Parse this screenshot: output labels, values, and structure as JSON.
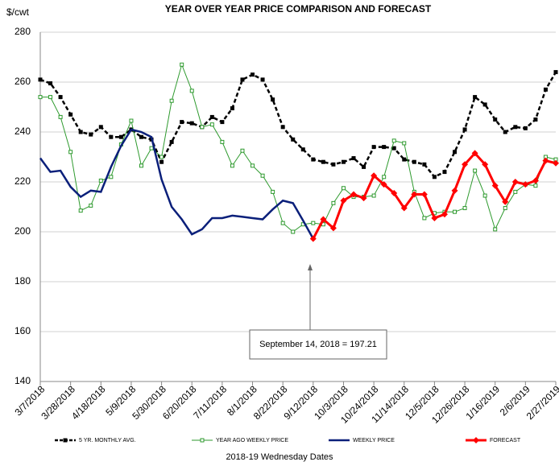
{
  "chart_data": {
    "type": "line",
    "title": "YEAR OVER YEAR PRICE COMPARISON AND FORECAST",
    "y_label": "$/cwt",
    "x_label": "2018-19 Wednesday Dates",
    "annotation": "September 14, 2018  = 197.21",
    "categories": [
      "3/7/2018",
      null,
      null,
      "3/28/2018",
      null,
      null,
      "4/18/2018",
      null,
      null,
      "5/9/2018",
      null,
      null,
      "5/30/2018",
      null,
      null,
      "6/20/2018",
      null,
      null,
      "7/11/2018",
      null,
      null,
      "8/1/2018",
      null,
      null,
      "8/22/2018",
      null,
      null,
      "9/12/2018",
      null,
      null,
      "10/3/2018",
      null,
      null,
      "10/24/2018",
      null,
      null,
      "11/14/2018",
      null,
      null,
      "12/5/2018",
      null,
      null,
      "12/26/2018",
      null,
      null,
      "1/16/2019",
      null,
      null,
      "2/6/2019",
      null,
      null,
      "2/27/2019"
    ],
    "ylim": [
      140,
      280
    ],
    "yticks": [
      140,
      160,
      180,
      200,
      220,
      240,
      260,
      280
    ],
    "grid": true,
    "series": [
      {
        "name": "5 YR. MONTHLY AVG.",
        "color": "#000000",
        "dash": true,
        "marker": "square-filled",
        "width": 2.5,
        "values": [
          261,
          259.5,
          254,
          247,
          240,
          239,
          242,
          238,
          238,
          241,
          238,
          237,
          228,
          236,
          244,
          243.5,
          242,
          246,
          244,
          249.5,
          261,
          263,
          261,
          253,
          242,
          237,
          233,
          229,
          228,
          227,
          228,
          229.5,
          226,
          234,
          234,
          233.5,
          229,
          228,
          227,
          222,
          224,
          232,
          241,
          254,
          251,
          245,
          240,
          242,
          241.5,
          245,
          257,
          264
        ]
      },
      {
        "name": "YEAR AGO WEEKLY PRICE",
        "color": "#2e9a2e",
        "dash": false,
        "marker": "square-open",
        "width": 1,
        "values": [
          254,
          254,
          246,
          232,
          208.5,
          210.5,
          220.5,
          222,
          235,
          244.5,
          226.5,
          233.5,
          230,
          252.5,
          267,
          256.5,
          242,
          243,
          236,
          226.5,
          232.5,
          226.5,
          222.5,
          216,
          203.5,
          200,
          203,
          203.5,
          203,
          211.5,
          217.5,
          214,
          214,
          214.5,
          222,
          236.5,
          235.5,
          216,
          205.5,
          207.5,
          208,
          208,
          209.5,
          224.5,
          214.5,
          201,
          209.5,
          216,
          219,
          218.5,
          230,
          229
        ]
      },
      {
        "name": "WEEKLY PRICE",
        "color": "#0a1f7a",
        "dash": false,
        "marker": "none",
        "width": 2.5,
        "values": [
          229.5,
          224,
          224.5,
          218,
          214,
          216.5,
          216,
          226,
          234.5,
          241,
          240,
          238,
          221,
          210,
          205,
          199,
          201,
          205.5,
          205.5,
          206.5,
          206,
          205.5,
          205,
          209,
          212.5,
          211.5,
          204.5,
          197.21,
          null,
          null,
          null,
          null,
          null,
          null,
          null,
          null,
          null,
          null,
          null,
          null,
          null,
          null,
          null,
          null,
          null,
          null,
          null,
          null,
          null,
          null,
          null,
          null
        ]
      },
      {
        "name": "FORECAST",
        "color": "#ff0000",
        "dash": false,
        "marker": "diamond",
        "width": 3,
        "values": [
          null,
          null,
          null,
          null,
          null,
          null,
          null,
          null,
          null,
          null,
          null,
          null,
          null,
          null,
          null,
          null,
          null,
          null,
          null,
          null,
          null,
          null,
          null,
          null,
          null,
          null,
          null,
          197.21,
          205,
          201.5,
          212.5,
          215,
          213.5,
          222.5,
          219,
          215.5,
          209.5,
          215,
          215,
          205.5,
          207,
          216.5,
          227,
          231.5,
          227,
          218.5,
          212,
          220,
          219,
          220.5,
          228.5,
          227.5
        ]
      }
    ]
  }
}
